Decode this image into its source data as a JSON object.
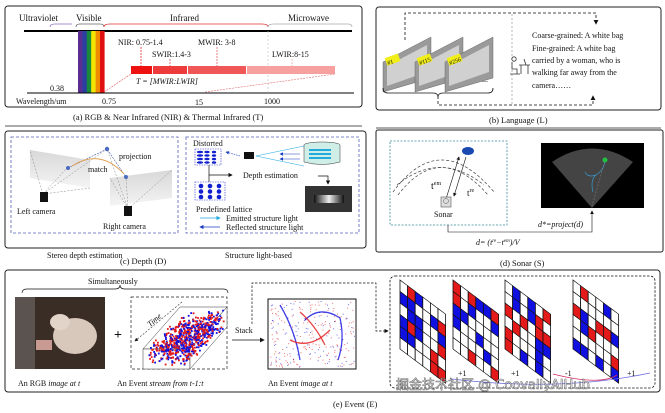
{
  "panel_a": {
    "bands": [
      "Ultraviolet",
      "Visible",
      "Infrared",
      "Microwave"
    ],
    "nir": "NIR: 0.75-1.4",
    "swir": "SWIR:1.4-3",
    "mwir": "MWIR: 3-8",
    "lwir": "LWIR:8-15",
    "thermal": "T = [MWIR:LWIR]",
    "tick_038": "0.38",
    "axis_label": "Wavelength/um",
    "ticks": [
      "0.75",
      "15",
      "1000"
    ],
    "caption": "(a) RGB & Near Infrared (NIR) &  Thermal Infrared (T)",
    "spectrum_colors": [
      "#5b2d90",
      "#2a3fa0",
      "#1a8a3a",
      "#f2e600",
      "#f08a00",
      "#e01010"
    ]
  },
  "panel_b": {
    "frame_labels": [
      "#1",
      "#115",
      "#256"
    ],
    "ellipsis": "...",
    "coarse": "Coarse-grained: A white bag",
    "fine_lines": [
      "Fine-grained: A white bag",
      "carried by a woman, who is",
      "walking far away from the",
      "camera……"
    ],
    "caption": "(b) Language (L)"
  },
  "panel_c": {
    "projection": "projection",
    "match": "match",
    "left_camera": "Left camera",
    "right_camera": "Right camera",
    "distorted": "Distorted",
    "depth_estimation": "Depth estimation",
    "predefined": "Predefined lattice",
    "emitted": "Emitted structure light",
    "reflected": "Reflected structure light",
    "sub_left": "Stereo depth estimation",
    "sub_right": "Structure light-based",
    "caption": "(c)  Depth (D)"
  },
  "panel_d": {
    "t_em": "t",
    "t_em_sup": "em",
    "t_re": "t",
    "t_re_sup": "re",
    "sonar": "Sonar",
    "project": "d*=project(d)",
    "formula": "d= (t",
    "formula_sup1": "re",
    "formula_mid": "−t",
    "formula_sup2": "em",
    "formula_end": ")/V",
    "caption": "(d) Sonar (S)"
  },
  "panel_e": {
    "simultaneously": "Simultaneously",
    "time": "Time",
    "plus": "+",
    "stack": "Stack",
    "rgb_label_1": "An RGB ",
    "rgb_label_2": "image at t",
    "stream_label_1": "An Event ",
    "stream_label_2": "stream from t-1:t",
    "image_label_1": "An Event ",
    "image_label_2": "image at t",
    "increments": [
      "+1",
      "+1",
      "-1",
      "+1"
    ],
    "caption": "(e) Event (E)",
    "event_colors": {
      "positive": "#e41a1a",
      "negative": "#1010e0"
    }
  },
  "watermark": "掘金技术社区 @ CoovallyAIHub"
}
